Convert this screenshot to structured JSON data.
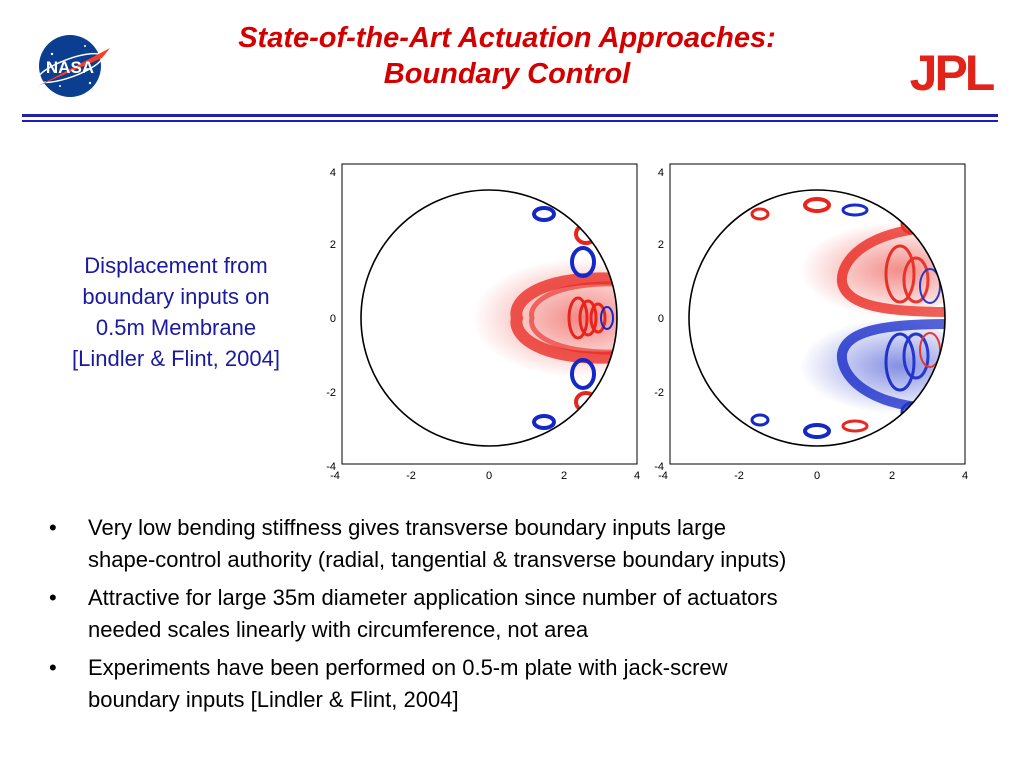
{
  "header": {
    "title_line1": "State-of-the-Art Actuation Approaches:",
    "title_line2": "Boundary Control",
    "left_logo": "NASA",
    "right_logo": "JPL",
    "accent_color": "#d40000",
    "rule_color": "#1f1fb4"
  },
  "caption": {
    "line1": "Displacement from",
    "line2": "boundary inputs on",
    "line3": "0.5m Membrane",
    "line4": "[Lindler & Flint, 2004]"
  },
  "plots": {
    "xticks": [
      "-4",
      "-2",
      "0",
      "2",
      "4"
    ],
    "yticks": [
      "4",
      "2",
      "0",
      "-2",
      "-4"
    ],
    "positive_color": "#e8241c",
    "negative_color": "#1428c8"
  },
  "bullets": [
    {
      "marker": "•",
      "line1": "Very low bending stiffness gives transverse boundary inputs large",
      "line2": "shape-control authority (radial, tangential & transverse boundary inputs)"
    },
    {
      "marker": "•",
      "line1": "Attractive for large 35m diameter application since number of actuators",
      "line2": "needed scales linearly with circumference, not area"
    },
    {
      "marker": "•",
      "line1": "Experiments have been performed on 0.5-m plate with jack-screw",
      "line2": "boundary inputs [Lindler & Flint, 2004]"
    }
  ]
}
